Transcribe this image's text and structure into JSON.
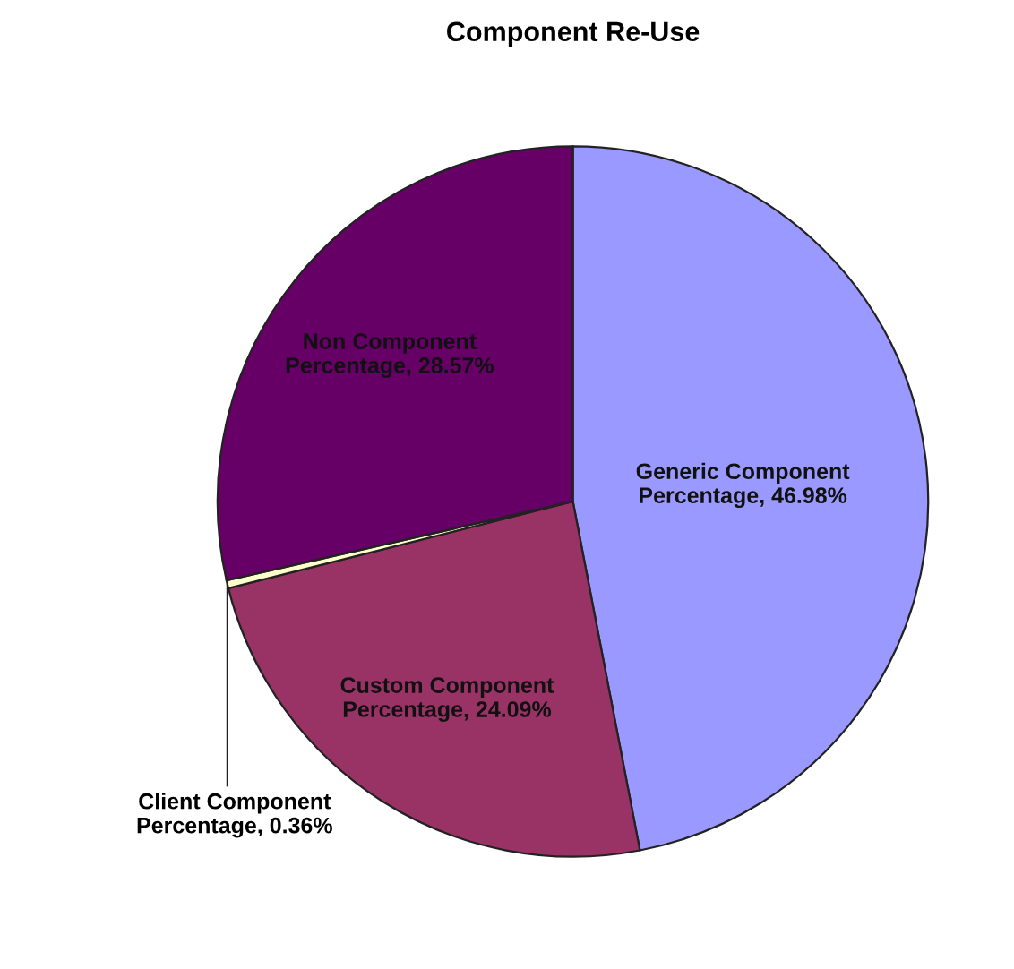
{
  "chart_data": {
    "type": "pie",
    "title": "Component Re-Use",
    "categories": [
      "Generic Component Percentage",
      "Custom Component Percentage",
      "Client Component Percentage",
      "Non Component Percentage"
    ],
    "values": [
      46.98,
      24.09,
      0.36,
      28.57
    ],
    "value_labels": [
      "46.98%",
      "24.09%",
      "0.36%",
      "28.57%"
    ],
    "colors": [
      "#9999ff",
      "#993366",
      "#ffffcc",
      "#660066"
    ],
    "legend": false
  }
}
